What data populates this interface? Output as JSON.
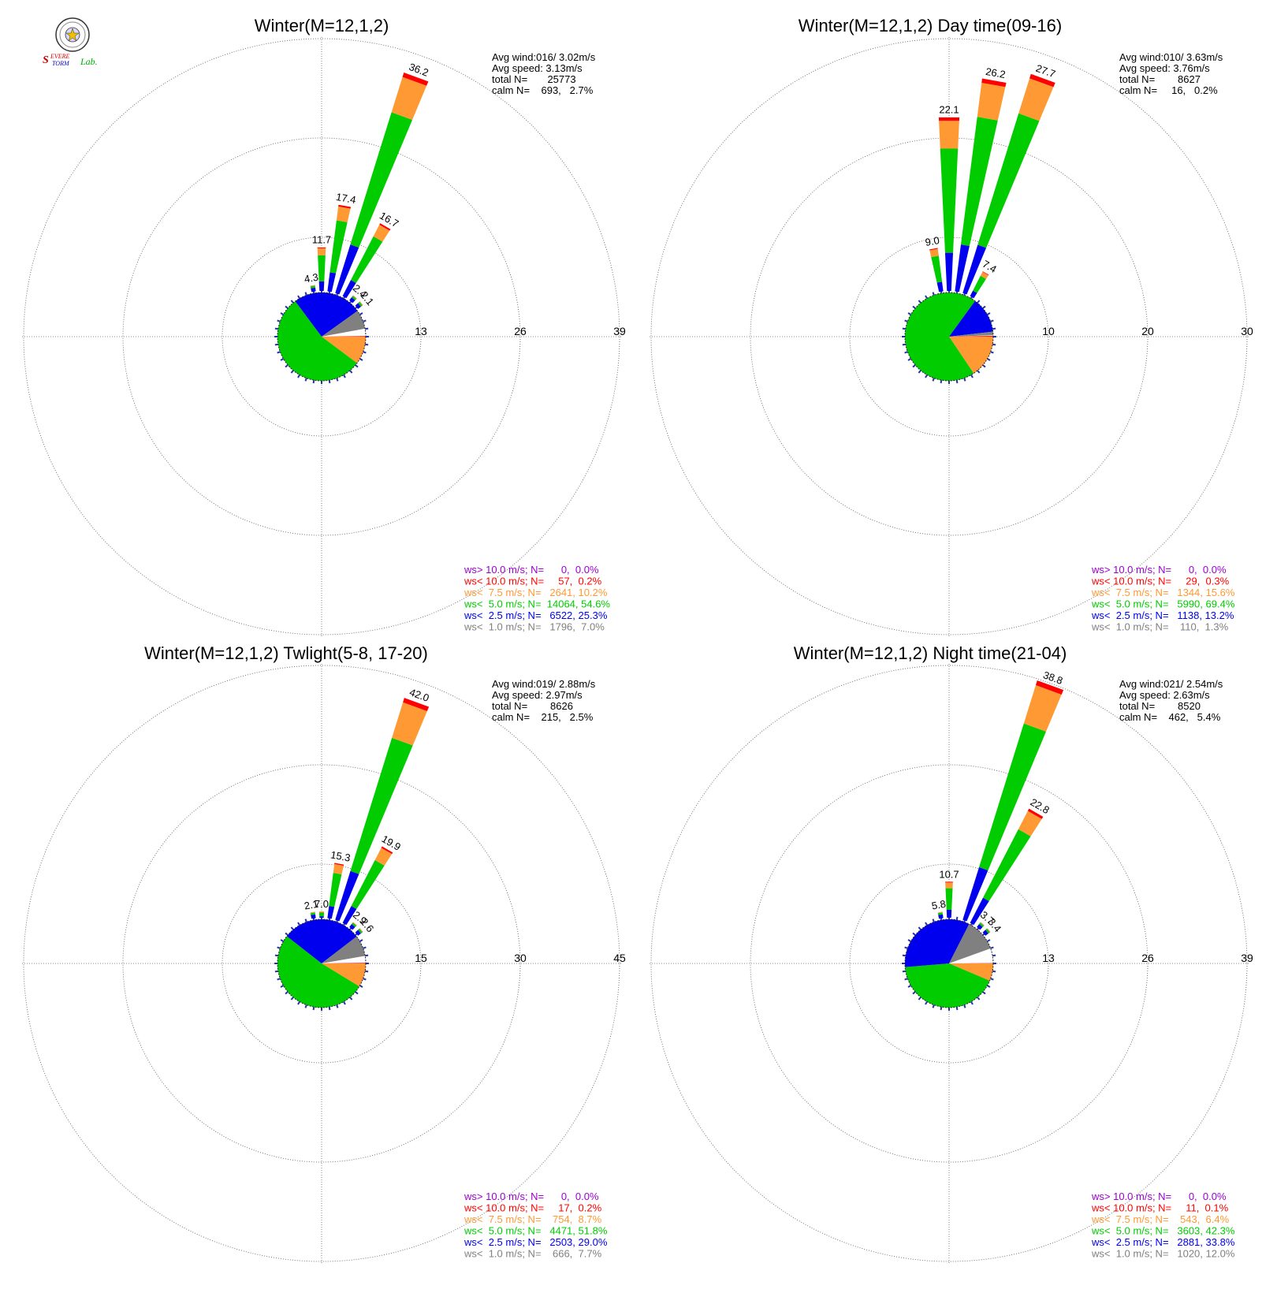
{
  "logo": {
    "text": "SevereStorm Lab.",
    "colors": {
      "severe": "#d00000",
      "storm": "#0000cc",
      "lab": "#00aa00"
    }
  },
  "colors": {
    "ws_gt_10": "#9b00d3",
    "ws_lt_10": "#ff0000",
    "ws_lt_7_5": "#ff9933",
    "ws_lt_5": "#00cc00",
    "ws_lt_2_5": "#0000ee",
    "ws_lt_1": "#808080",
    "grid": "#666666",
    "text": "#000000"
  },
  "chart_data": [
    {
      "type": "polar-bar",
      "title": "Winter(M=12,1,2)",
      "stats": [
        "Avg wind:016/ 3.02m/s",
        "Avg speed: 3.13m/s",
        "total N=       25773",
        "calm N=    693,   2.7%"
      ],
      "rings": [
        13,
        26,
        39
      ],
      "ring_labels": [
        "13",
        "26",
        "39"
      ],
      "bars": [
        {
          "direction": -10,
          "value": 4.3,
          "label": "4.3"
        },
        {
          "direction": 0,
          "value": 11.7,
          "label": "11.7"
        },
        {
          "direction": 10,
          "value": 17.4,
          "label": "17.4"
        },
        {
          "direction": 20,
          "value": 36.2,
          "label": "36.2"
        },
        {
          "direction": 30,
          "value": 16.7,
          "label": "16.7"
        },
        {
          "direction": 40,
          "value": 2.4,
          "label": "2.4"
        },
        {
          "direction": 50,
          "value": 2.1,
          "label": "2.1"
        }
      ],
      "pie": {
        "ws_lt_1": 7.0,
        "ws_lt_2_5": 25.3,
        "ws_lt_5": 54.6,
        "ws_lt_7_5": 10.2,
        "ws_lt_10": 0.2,
        "calm": 2.7
      },
      "legend": [
        {
          "key": "ws_gt_10",
          "text": "ws> 10.0 m/s; N=      0,  0.0%"
        },
        {
          "key": "ws_lt_10",
          "text": "ws< 10.0 m/s; N=     57,  0.2%"
        },
        {
          "key": "ws_lt_7_5",
          "text": "ws<  7.5 m/s; N=   2641, 10.2%"
        },
        {
          "key": "ws_lt_5",
          "text": "ws<  5.0 m/s; N=  14064, 54.6%"
        },
        {
          "key": "ws_lt_2_5",
          "text": "ws<  2.5 m/s; N=   6522, 25.3%"
        },
        {
          "key": "ws_lt_1",
          "text": "ws<  1.0 m/s; N=   1796,  7.0%"
        }
      ]
    },
    {
      "type": "polar-bar",
      "title": "Winter(M=12,1,2) Day time(09-16)",
      "stats": [
        "Avg wind:010/ 3.63m/s",
        "Avg speed: 3.76m/s",
        "total N=        8627",
        "calm N=     16,   0.2%"
      ],
      "rings": [
        10,
        20,
        30
      ],
      "ring_labels": [
        "10",
        "20",
        "30"
      ],
      "bars": [
        {
          "direction": -10,
          "value": 9.0,
          "label": "9.0"
        },
        {
          "direction": 0,
          "value": 22.1,
          "label": "22.1"
        },
        {
          "direction": 10,
          "value": 26.2,
          "label": "26.2"
        },
        {
          "direction": 20,
          "value": 27.7,
          "label": "27.7"
        },
        {
          "direction": 30,
          "value": 7.4,
          "label": "7.4"
        }
      ],
      "pie": {
        "ws_lt_1": 1.3,
        "ws_lt_2_5": 13.2,
        "ws_lt_5": 69.4,
        "ws_lt_7_5": 15.6,
        "ws_lt_10": 0.3,
        "calm": 0.2
      },
      "legend": [
        {
          "key": "ws_gt_10",
          "text": "ws> 10.0 m/s; N=      0,  0.0%"
        },
        {
          "key": "ws_lt_10",
          "text": "ws< 10.0 m/s; N=     29,  0.3%"
        },
        {
          "key": "ws_lt_7_5",
          "text": "ws<  7.5 m/s; N=   1344, 15.6%"
        },
        {
          "key": "ws_lt_5",
          "text": "ws<  5.0 m/s; N=   5990, 69.4%"
        },
        {
          "key": "ws_lt_2_5",
          "text": "ws<  2.5 m/s; N=   1138, 13.2%"
        },
        {
          "key": "ws_lt_1",
          "text": "ws<  1.0 m/s; N=    110,  1.3%"
        }
      ]
    },
    {
      "type": "polar-bar",
      "title": "Winter(M=12,1,2) Twlight(5-8, 17-20)",
      "stats": [
        "Avg wind:019/ 2.88m/s",
        "Avg speed: 2.97m/s",
        "total N=        8626",
        "calm N=    215,   2.5%"
      ],
      "rings": [
        15,
        30,
        45
      ],
      "ring_labels": [
        "15",
        "30",
        "45"
      ],
      "bars": [
        {
          "direction": -10,
          "value": 2.1,
          "label": "2.1"
        },
        {
          "direction": 0,
          "value": 7.0,
          "label": "7.0"
        },
        {
          "direction": 10,
          "value": 15.3,
          "label": "15.3"
        },
        {
          "direction": 20,
          "value": 42.0,
          "label": "42.0"
        },
        {
          "direction": 30,
          "value": 19.9,
          "label": "19.9"
        },
        {
          "direction": 40,
          "value": 2.9,
          "label": "2.9"
        },
        {
          "direction": 50,
          "value": 2.6,
          "label": "2.6"
        }
      ],
      "pie": {
        "ws_lt_1": 7.7,
        "ws_lt_2_5": 29.0,
        "ws_lt_5": 51.8,
        "ws_lt_7_5": 8.7,
        "ws_lt_10": 0.2,
        "calm": 2.5
      },
      "legend": [
        {
          "key": "ws_gt_10",
          "text": "ws> 10.0 m/s; N=      0,  0.0%"
        },
        {
          "key": "ws_lt_10",
          "text": "ws< 10.0 m/s; N=     17,  0.2%"
        },
        {
          "key": "ws_lt_7_5",
          "text": "ws<  7.5 m/s; N=    754,  8.7%"
        },
        {
          "key": "ws_lt_5",
          "text": "ws<  5.0 m/s; N=   4471, 51.8%"
        },
        {
          "key": "ws_lt_2_5",
          "text": "ws<  2.5 m/s; N=   2503, 29.0%"
        },
        {
          "key": "ws_lt_1",
          "text": "ws<  1.0 m/s; N=    666,  7.7%"
        }
      ]
    },
    {
      "type": "polar-bar",
      "title": "Winter(M=12,1,2) Night time(21-04)",
      "stats": [
        "Avg wind:021/ 2.54m/s",
        "Avg speed: 2.63m/s",
        "total N=        8520",
        "calm N=    462,   5.4%"
      ],
      "rings": [
        13,
        26,
        39
      ],
      "ring_labels": [
        "13",
        "26",
        "39"
      ],
      "bars": [
        {
          "direction": -10,
          "value": 5.8,
          "label": "5.8"
        },
        {
          "direction": 0,
          "value": 10.7,
          "label": "10.7"
        },
        {
          "direction": 20,
          "value": 38.8,
          "label": "38.8"
        },
        {
          "direction": 30,
          "value": 22.8,
          "label": "22.8"
        },
        {
          "direction": 40,
          "value": 3.7,
          "label": "3.7"
        },
        {
          "direction": 50,
          "value": 3.4,
          "label": "3.4"
        }
      ],
      "pie": {
        "ws_lt_1": 12.0,
        "ws_lt_2_5": 33.8,
        "ws_lt_5": 42.3,
        "ws_lt_7_5": 6.4,
        "ws_lt_10": 0.1,
        "calm": 5.4
      },
      "legend": [
        {
          "key": "ws_gt_10",
          "text": "ws> 10.0 m/s; N=      0,  0.0%"
        },
        {
          "key": "ws_lt_10",
          "text": "ws< 10.0 m/s; N=     11,  0.1%"
        },
        {
          "key": "ws_lt_7_5",
          "text": "ws<  7.5 m/s; N=    543,  6.4%"
        },
        {
          "key": "ws_lt_5",
          "text": "ws<  5.0 m/s; N=   3603, 42.3%"
        },
        {
          "key": "ws_lt_2_5",
          "text": "ws<  2.5 m/s; N=   2881, 33.8%"
        },
        {
          "key": "ws_lt_1",
          "text": "ws<  1.0 m/s; N=   1020, 12.0%"
        }
      ]
    }
  ]
}
